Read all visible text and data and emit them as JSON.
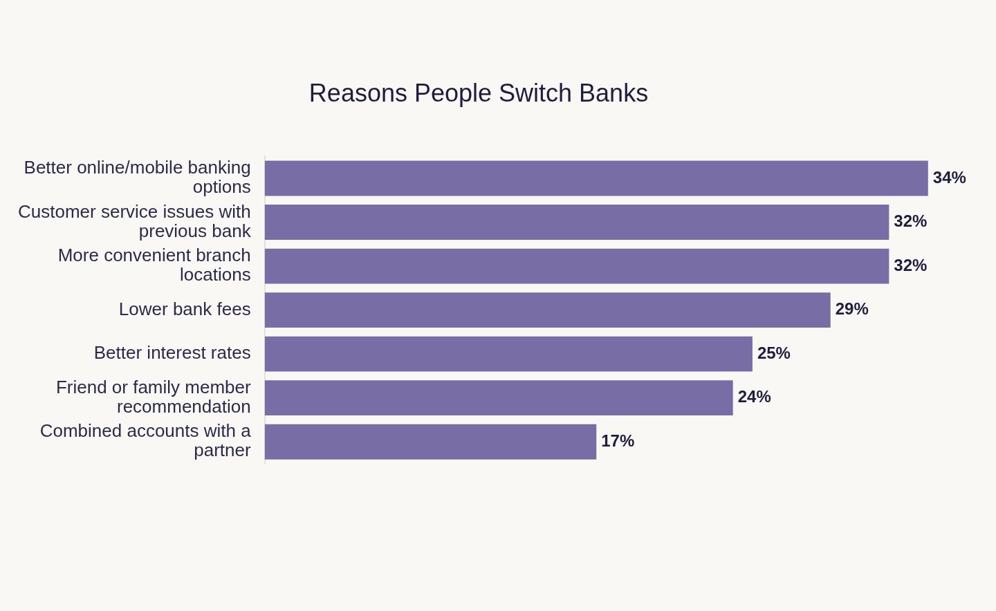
{
  "chart_data": {
    "type": "bar",
    "orientation": "horizontal",
    "title": "Reasons People Switch Banks",
    "categories": [
      "Better online/mobile banking options",
      "Customer service issues with previous bank",
      "More convenient branch locations",
      "Lower bank fees",
      "Better interest rates",
      "Friend or family member recommendation",
      "Combined accounts with a partner"
    ],
    "values": [
      34,
      32,
      32,
      29,
      25,
      24,
      17
    ],
    "value_labels": [
      "34%",
      "32%",
      "32%",
      "29%",
      "25%",
      "24%",
      "17%"
    ],
    "color": "#786ea5",
    "tick_labels": "y",
    "legend": false
  }
}
